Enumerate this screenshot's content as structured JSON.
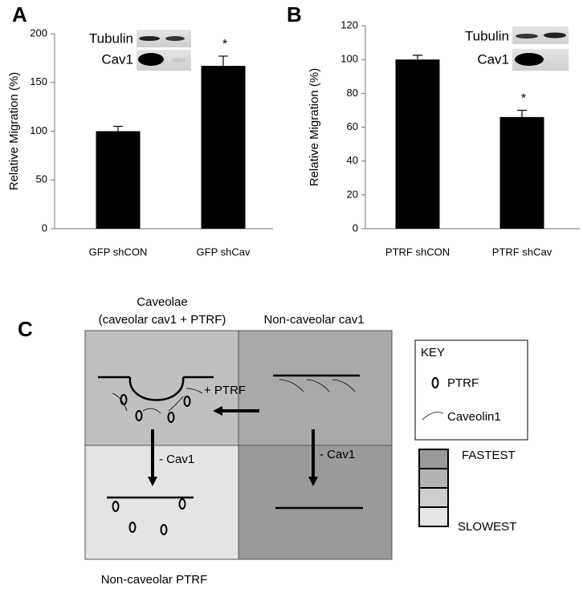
{
  "chart_data": [
    {
      "type": "bar",
      "panel_label": "A",
      "ylabel": "Relative Migration (%)",
      "categories": [
        "GFP shCON",
        "GFP shCav"
      ],
      "values": [
        100,
        167
      ],
      "errors": [
        5,
        10
      ],
      "color": "#000000",
      "ylim": [
        0,
        200
      ],
      "yticks": [
        0,
        50,
        100,
        150,
        200
      ],
      "blot_labels": [
        "Tubulin",
        "Cav1"
      ],
      "annotation": "*"
    },
    {
      "type": "bar",
      "panel_label": "B",
      "ylabel": "Relative Migration (%)",
      "categories": [
        "PTRF shCON",
        "PTRF shCav"
      ],
      "values": [
        100,
        66
      ],
      "errors": [
        2.5,
        4
      ],
      "color": "#000000",
      "ylim": [
        0,
        120
      ],
      "yticks": [
        0,
        20,
        40,
        60,
        80,
        100,
        120
      ],
      "blot_labels": [
        "Tubulin",
        "Cav1"
      ],
      "annotation": "*"
    }
  ],
  "diagram": {
    "panel_label": "C",
    "caveolae_title": [
      "Caveolae",
      "(caveolar cav1 + PTRF)"
    ],
    "noncaveolar_cav1": "Non-caveolar cav1",
    "noncaveolar_ptrf": "Non-caveolar PTRF",
    "plus_ptrf": "+ PTRF",
    "minus_cav1": [
      "- Cav1",
      "- Cav1"
    ],
    "key": {
      "title": "KEY",
      "items": [
        "PTRF",
        "Caveolin1"
      ]
    },
    "speed_scale": [
      "FASTEST",
      "SLOWEST"
    ]
  }
}
